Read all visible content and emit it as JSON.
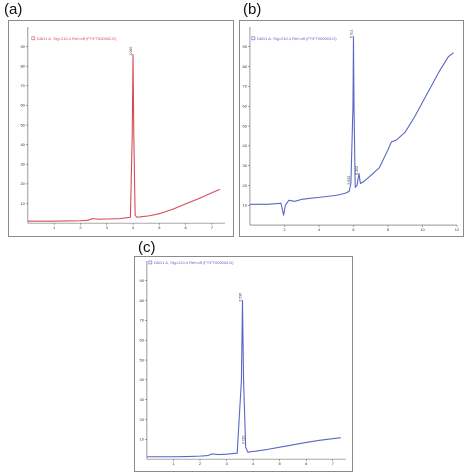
{
  "panels": [
    {
      "label": "(a)",
      "legend_text": "DAD1 A, Sig=210,4 Ref=off (FT\\FT000002.D)"
    },
    {
      "label": "(b)",
      "legend_text": "DAD1 A, Sig=210,4 Ref=off (FT\\FT000003.D)"
    },
    {
      "label": "(c)",
      "legend_text": "DAD1 A, Sig=210,4 Ref=off (FT\\FT000004.D)"
    }
  ],
  "chart_data": [
    {
      "type": "line",
      "title": "",
      "xlabel": "",
      "ylabel": "",
      "xlim": [
        0,
        7.5
      ],
      "ylim": [
        0,
        100
      ],
      "x_ticks": [
        1,
        2,
        3,
        4,
        5,
        6,
        7
      ],
      "y_ticks": [
        10,
        20,
        30,
        40,
        50,
        60,
        70,
        80,
        90
      ],
      "color": "#d64b57",
      "series": [
        {
          "x": [
            0,
            1,
            1.5,
            2,
            2.3,
            2.45,
            2.7,
            3,
            3.5,
            3.9,
            3.97,
            4.0,
            4.03,
            4.08,
            4.15,
            4.3,
            4.6,
            5.0,
            5.5,
            6.0,
            6.5,
            7.0,
            7.3
          ],
          "y": [
            1.0,
            1.0,
            1.1,
            1.2,
            1.5,
            2.3,
            2.0,
            2.1,
            2.3,
            3.0,
            45,
            86,
            45,
            4.0,
            3.0,
            3.2,
            3.7,
            4.8,
            7.0,
            9.8,
            12.5,
            15.5,
            17.2
          ]
        }
      ],
      "peak_labels": [
        {
          "x": 4.0,
          "y": 86,
          "text": "4.000"
        }
      ]
    },
    {
      "type": "line",
      "title": "",
      "xlabel": "",
      "ylabel": "",
      "xlim": [
        0,
        12
      ],
      "ylim": [
        0,
        100
      ],
      "x_ticks": [
        2,
        4,
        6,
        8,
        10,
        12
      ],
      "y_ticks": [
        10,
        20,
        30,
        40,
        50,
        60,
        70,
        80,
        90
      ],
      "color": "#5a65c8",
      "series": [
        {
          "x": [
            0,
            1,
            1.8,
            1.95,
            2.05,
            2.25,
            2.6,
            3,
            3.5,
            4,
            4.5,
            5,
            5.5,
            5.75,
            5.85,
            5.97,
            6.0,
            6.03,
            6.1,
            6.2,
            6.32,
            6.4,
            6.6,
            7,
            7.5,
            8,
            8.2,
            8.5,
            9,
            9.5,
            10,
            10.5,
            11,
            11.5,
            11.8
          ],
          "y": [
            10.5,
            10.5,
            11,
            5,
            10,
            12.5,
            12,
            13,
            13.5,
            14,
            14.5,
            15,
            16,
            17,
            21,
            60,
            95,
            60,
            19,
            20,
            26,
            21,
            22,
            25,
            29,
            38,
            42,
            43,
            47,
            54,
            62,
            70,
            78,
            85,
            87
          ]
        }
      ],
      "peak_labels": [
        {
          "x": 6.0,
          "y": 95,
          "text": "6.011"
        },
        {
          "x": 5.85,
          "y": 21,
          "text": "5.822"
        },
        {
          "x": 6.32,
          "y": 26,
          "text": "6.352"
        }
      ]
    },
    {
      "type": "line",
      "title": "",
      "xlabel": "",
      "ylabel": "",
      "xlim": [
        0,
        7.5
      ],
      "ylim": [
        0,
        100
      ],
      "x_ticks": [
        1,
        2,
        3,
        4,
        5,
        6,
        7
      ],
      "y_ticks": [
        10,
        20,
        30,
        40,
        50,
        60,
        70,
        80,
        90
      ],
      "color": "#5a65c8",
      "series": [
        {
          "x": [
            0,
            1,
            1.5,
            2,
            2.3,
            2.45,
            2.7,
            3,
            3.4,
            3.56,
            3.6,
            3.64,
            3.72,
            3.8,
            3.95,
            4.1,
            4.5,
            5,
            5.5,
            6,
            6.5,
            7,
            7.3
          ],
          "y": [
            1.2,
            1.2,
            1.3,
            1.5,
            1.8,
            2.6,
            2.3,
            2.5,
            3.0,
            40,
            80,
            40,
            6,
            3.5,
            3.8,
            4.0,
            4.8,
            6.0,
            7.2,
            8.4,
            9.5,
            10.3,
            10.8
          ]
        }
      ],
      "peak_labels": [
        {
          "x": 3.6,
          "y": 80,
          "text": "3.596"
        },
        {
          "x": 3.72,
          "y": 8,
          "text": "3.720"
        }
      ]
    }
  ]
}
